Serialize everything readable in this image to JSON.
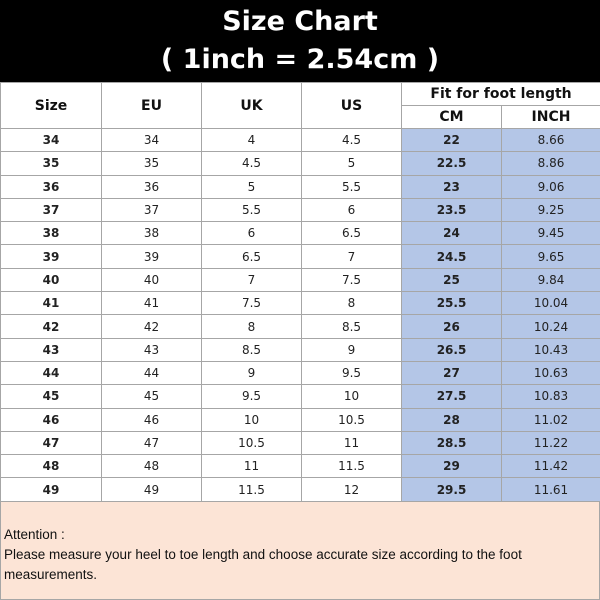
{
  "title": {
    "line1": "Size Chart",
    "line2": "( 1inch = 2.54cm )"
  },
  "headers": {
    "size": "Size",
    "eu": "EU",
    "uk": "UK",
    "us": "US",
    "fit": "Fit for foot length",
    "cm": "CM",
    "inch": "INCH"
  },
  "rows": [
    [
      "34",
      "34",
      "4",
      "4.5",
      "22",
      "8.66"
    ],
    [
      "35",
      "35",
      "4.5",
      "5",
      "22.5",
      "8.86"
    ],
    [
      "36",
      "36",
      "5",
      "5.5",
      "23",
      "9.06"
    ],
    [
      "37",
      "37",
      "5.5",
      "6",
      "23.5",
      "9.25"
    ],
    [
      "38",
      "38",
      "6",
      "6.5",
      "24",
      "9.45"
    ],
    [
      "39",
      "39",
      "6.5",
      "7",
      "24.5",
      "9.65"
    ],
    [
      "40",
      "40",
      "7",
      "7.5",
      "25",
      "9.84"
    ],
    [
      "41",
      "41",
      "7.5",
      "8",
      "25.5",
      "10.04"
    ],
    [
      "42",
      "42",
      "8",
      "8.5",
      "26",
      "10.24"
    ],
    [
      "43",
      "43",
      "8.5",
      "9",
      "26.5",
      "10.43"
    ],
    [
      "44",
      "44",
      "9",
      "9.5",
      "27",
      "10.63"
    ],
    [
      "45",
      "45",
      "9.5",
      "10",
      "27.5",
      "10.83"
    ],
    [
      "46",
      "46",
      "10",
      "10.5",
      "28",
      "11.02"
    ],
    [
      "47",
      "47",
      "10.5",
      "11",
      "28.5",
      "11.22"
    ],
    [
      "48",
      "48",
      "11",
      "11.5",
      "29",
      "11.42"
    ],
    [
      "49",
      "49",
      "11.5",
      "12",
      "29.5",
      "11.61"
    ]
  ],
  "note": {
    "heading": "Attention :",
    "text": "Please measure your heel to toe length and choose accurate size according to the foot measurements."
  },
  "colors": {
    "title_bg": "#000000",
    "measure_bg": "#b4c6e7",
    "note_bg": "#fce4d6"
  }
}
